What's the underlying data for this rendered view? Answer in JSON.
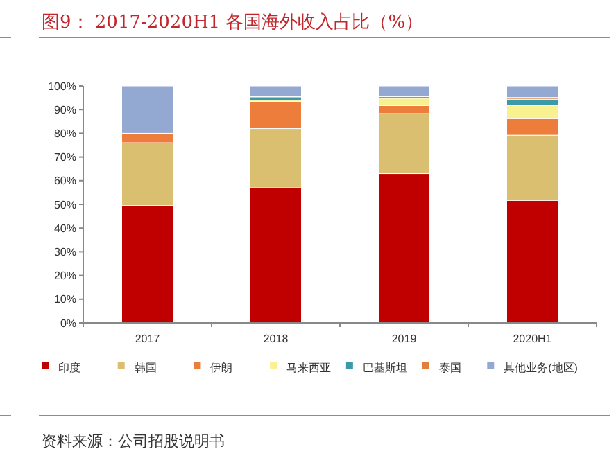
{
  "chart_data": {
    "type": "bar",
    "title": "图9：  2017-2020H1 各国海外收入占比（%）",
    "stacked": true,
    "legend": "bottom",
    "grid": false,
    "categories": [
      "2017",
      "2018",
      "2019",
      "2020H1"
    ],
    "series": [
      {
        "name": "印度",
        "color": "#c00000",
        "values": [
          49.5,
          57,
          63,
          51.7
        ]
      },
      {
        "name": "韩国",
        "color": "#d9bf6f",
        "values": [
          26.5,
          25,
          25.3,
          27.5
        ]
      },
      {
        "name": "伊朗",
        "color": "#ed7d3b",
        "values": [
          4,
          11.5,
          3.4,
          7
        ]
      },
      {
        "name": "马来西亚",
        "color": "#f9f08f",
        "values": [
          0,
          0.5,
          3.1,
          5.5
        ]
      },
      {
        "name": "巴基斯坦",
        "color": "#3a9aaa",
        "values": [
          0,
          1,
          0,
          2.7
        ]
      },
      {
        "name": "泰国",
        "color": "#e0803a",
        "values": [
          0,
          0.5,
          0.7,
          0.7
        ]
      },
      {
        "name": "其他业务(地区)",
        "color": "#93a9d2",
        "values": [
          20,
          4.5,
          4.5,
          4.9
        ]
      }
    ],
    "ylim": [
      0,
      100
    ],
    "yticks": [
      {
        "value": 0,
        "label": "0%"
      },
      {
        "value": 10,
        "label": "10%"
      },
      {
        "value": 20,
        "label": "20%"
      },
      {
        "value": 30,
        "label": "30%"
      },
      {
        "value": 40,
        "label": "40%"
      },
      {
        "value": 50,
        "label": "50%"
      },
      {
        "value": 60,
        "label": "60%"
      },
      {
        "value": 70,
        "label": "70%"
      },
      {
        "value": 80,
        "label": "80%"
      },
      {
        "value": 90,
        "label": "90%"
      },
      {
        "value": 100,
        "label": "100%"
      }
    ],
    "annotations": [
      "资料来源：公司招股说明书"
    ]
  }
}
